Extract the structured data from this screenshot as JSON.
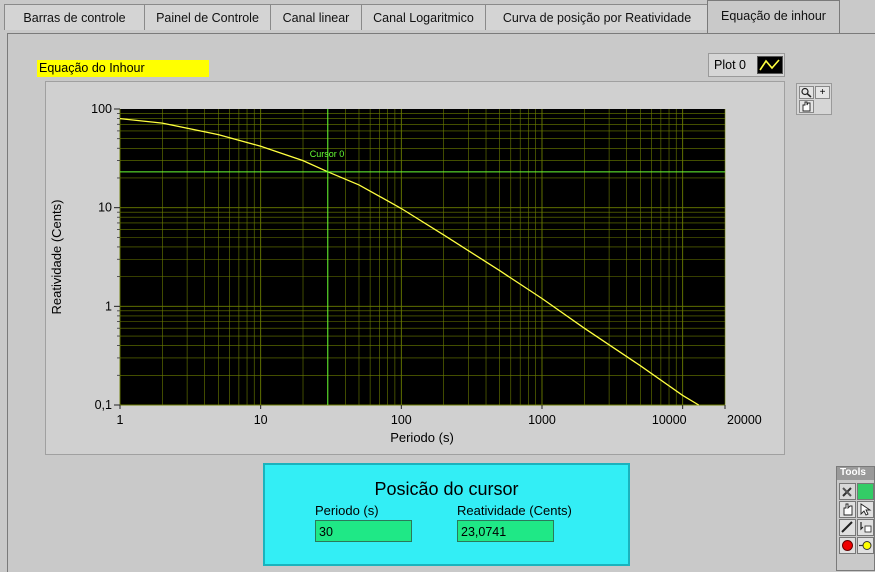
{
  "tabs": [
    {
      "label": "Barras de controle"
    },
    {
      "label": "Painel de Controle"
    },
    {
      "label": "Canal linear"
    },
    {
      "label": "Canal Logaritmico"
    },
    {
      "label": "Curva de posição por Reatividade"
    },
    {
      "label": "Equação de inhour"
    }
  ],
  "active_tab": "Equação de inhour",
  "graph": {
    "label": "Equação do Inhour",
    "legend_plot_name": "Plot 0",
    "cursor_name": "Cursor 0"
  },
  "cursor_panel": {
    "title": "Posicão do cursor",
    "period_label": "Periodo (s)",
    "period_value": "30",
    "reactivity_label": "Reatividade (Cents)",
    "reactivity_value": "23,0741"
  },
  "tools_palette": {
    "title": "Tools"
  },
  "icons": [
    "zoom-icon",
    "pan-hand-icon",
    "plot-line-icon",
    "wrench-icon",
    "operate-hand-icon",
    "arrow-icon",
    "breakpoint-icon"
  ],
  "colors": {
    "plot_background": "#000000",
    "grid": "#6b7d00",
    "curve": "#ffff40",
    "cursor": "#66ff33",
    "cursor_panel": "#33eef5",
    "indicator": "#1fe886",
    "label_bg": "#ffff00"
  },
  "chart_data": {
    "type": "line",
    "xlabel": "Periodo (s)",
    "ylabel": "Reatividade (Cents)",
    "x_scale": "log",
    "y_scale": "log",
    "xlim": [
      1,
      20000
    ],
    "ylim": [
      0.1,
      100
    ],
    "x_tick_labels": [
      "1",
      "10",
      "100",
      "1000",
      "10000",
      "20000"
    ],
    "y_tick_labels": [
      "100",
      "10",
      "1",
      "0,1"
    ],
    "grid": true,
    "series": [
      {
        "name": "Plot 0",
        "x": [
          1,
          2,
          5,
          10,
          20,
          30,
          50,
          100,
          200,
          500,
          1000,
          2000,
          5000,
          10000,
          13000
        ],
        "y": [
          80,
          72,
          55,
          42,
          30,
          23.07,
          17,
          9.8,
          5.3,
          2.3,
          1.2,
          0.6,
          0.25,
          0.125,
          0.1
        ]
      }
    ],
    "cursor": {
      "name": "Cursor 0",
      "x": 30,
      "y": 23.0741
    }
  }
}
